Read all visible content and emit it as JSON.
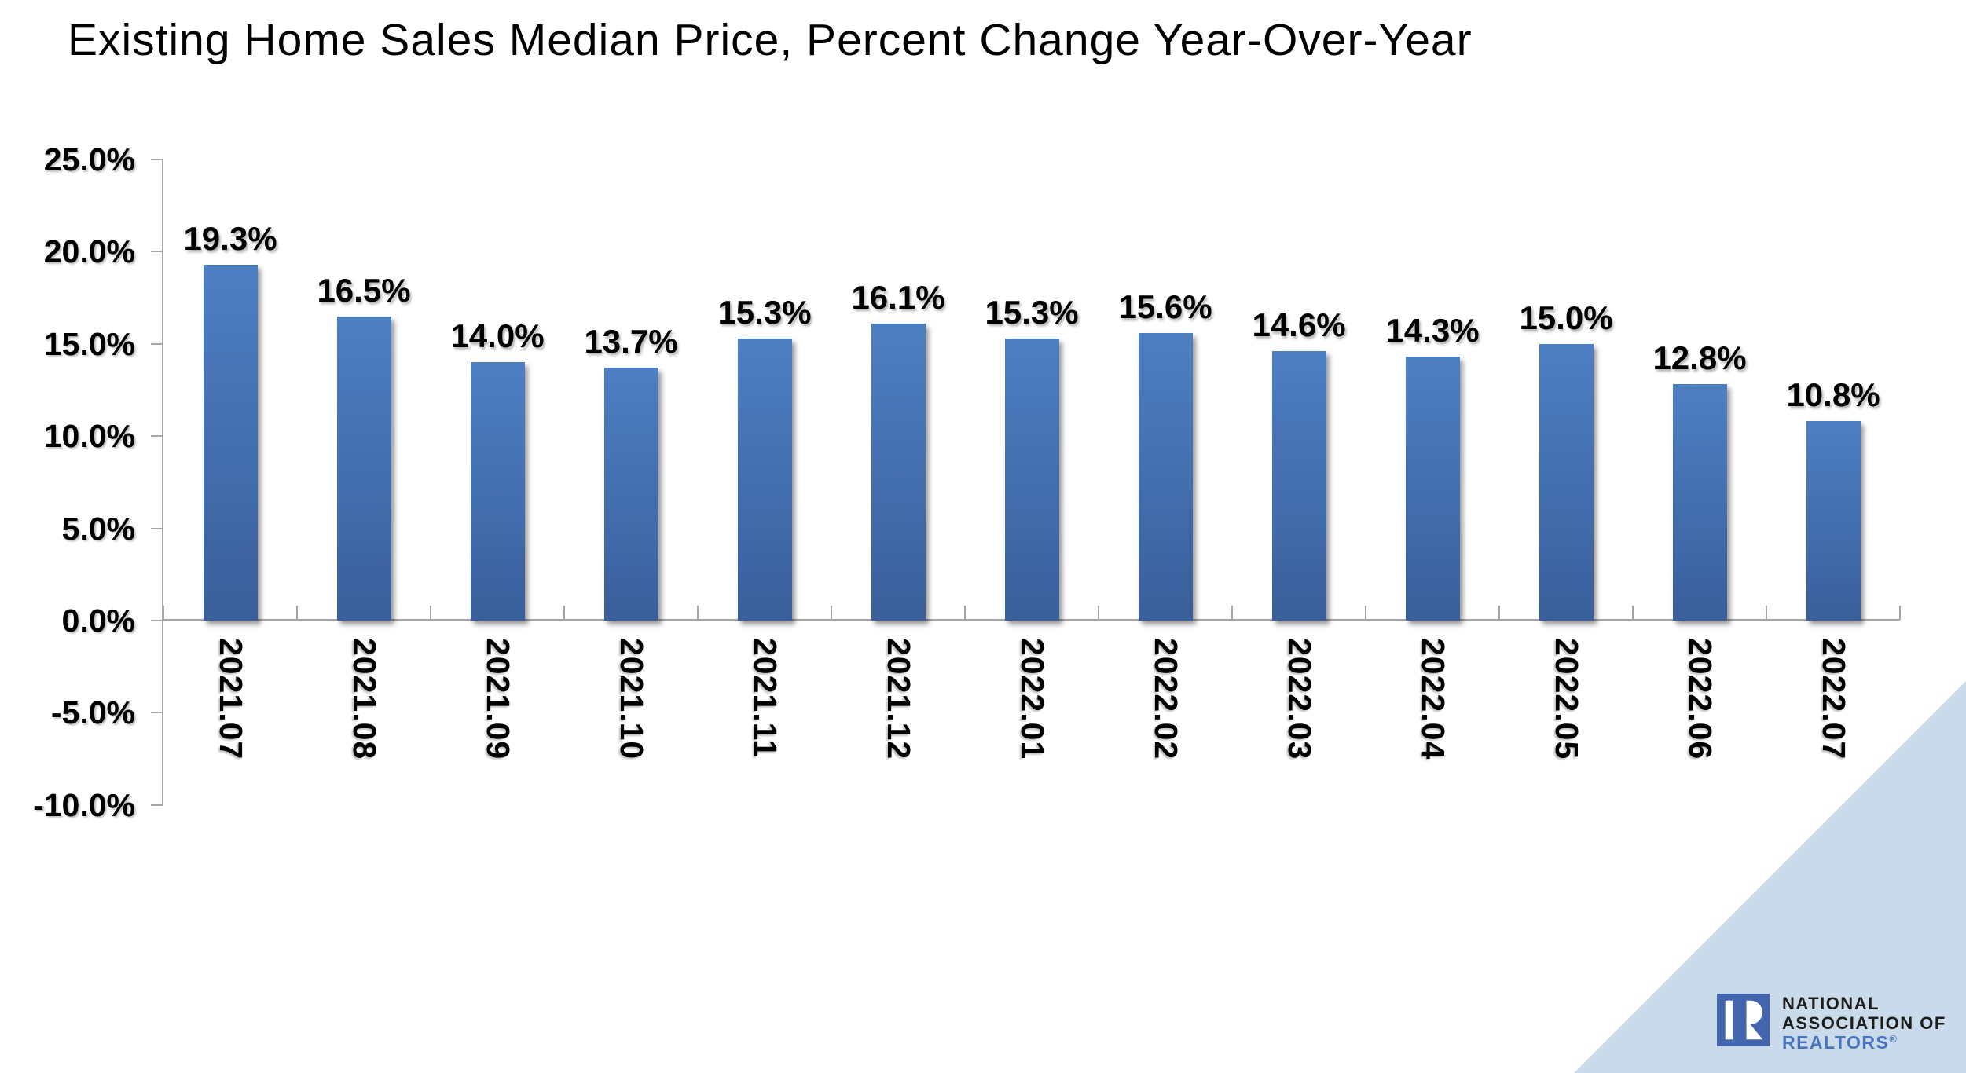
{
  "title": "Existing Home Sales Median Price, Percent Change Year-Over-Year",
  "chart_data": {
    "type": "bar",
    "title": "Existing Home Sales Median Price, Percent Change Year-Over-Year",
    "categories": [
      "2021.07",
      "2021.08",
      "2021.09",
      "2021.10",
      "2021.11",
      "2021.12",
      "2022.01",
      "2022.02",
      "2022.03",
      "2022.04",
      "2022.05",
      "2022.06",
      "2022.07"
    ],
    "values": [
      19.3,
      16.5,
      14.0,
      13.7,
      15.3,
      16.1,
      15.3,
      15.6,
      14.6,
      14.3,
      15.0,
      12.8,
      10.8
    ],
    "data_labels": [
      "19.3%",
      "16.5%",
      "14.0%",
      "13.7%",
      "15.3%",
      "16.1%",
      "15.3%",
      "15.6%",
      "14.6%",
      "14.3%",
      "15.0%",
      "12.8%",
      "10.8%"
    ],
    "xlabel": "",
    "ylabel": "",
    "y_tick_labels": [
      "25.0%",
      "20.0%",
      "15.0%",
      "10.0%",
      "5.0%",
      "0.0%",
      "-5.0%",
      "-10.0%"
    ],
    "y_tick_values": [
      25,
      20,
      15,
      10,
      5,
      0,
      -5,
      -10
    ],
    "ylim": [
      -10,
      25
    ],
    "grid": false,
    "legend": false,
    "bar_color_top": "#4d7fc3",
    "bar_color_bottom": "#3a5f9b",
    "axis_color": "#a6a6a6",
    "label_color": "#000000"
  },
  "branding": {
    "logo_lines": [
      "NATIONAL",
      "ASSOCIATION OF",
      "REALTORS"
    ],
    "registered_mark": "®",
    "logo_square_color": "#4265ae",
    "logo_text_dark": "#1d1d1b",
    "logo_text_blue": "#4a74bd",
    "corner_triangle_color": "#c9dbea"
  }
}
